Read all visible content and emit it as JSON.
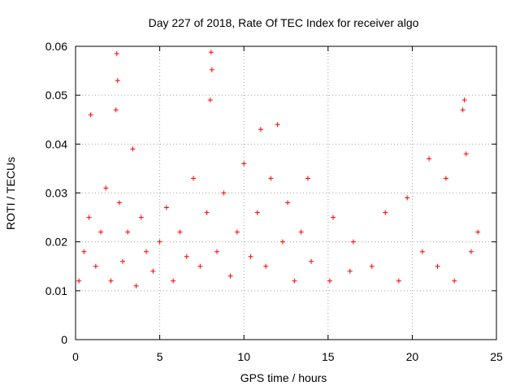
{
  "chart_data": {
    "type": "scatter",
    "title": "Day 227 of 2018, Rate Of TEC Index for receiver algo",
    "xlabel": "GPS time / hours",
    "ylabel": "ROTI / TECUs",
    "xlim": [
      0,
      25
    ],
    "ylim": [
      0,
      0.06
    ],
    "x_ticks": [
      "0",
      "5",
      "10",
      "15",
      "20",
      "25"
    ],
    "y_ticks": [
      "0",
      "0.01",
      "0.02",
      "0.03",
      "0.04",
      "0.05",
      "0.06"
    ],
    "grid": true,
    "marker": "+",
    "color": "#ff0000",
    "series": [
      {
        "x": [
          0.2,
          0.5,
          0.8,
          0.9,
          1.2,
          1.5,
          1.8,
          2.1,
          2.4,
          2.45,
          2.5,
          2.6,
          2.8,
          3.1,
          3.4,
          3.6,
          3.9,
          4.2,
          4.6,
          5.0,
          5.4,
          5.8,
          6.2,
          6.6,
          7.0,
          7.4,
          7.8,
          8.0,
          8.05,
          8.1,
          8.4,
          8.8,
          9.2,
          9.6,
          10.0,
          10.4,
          10.8,
          11.0,
          11.3,
          11.6,
          12.0,
          12.3,
          12.6,
          13.0,
          13.4,
          13.8,
          14.0,
          15.1,
          15.3,
          16.3,
          16.5,
          17.6,
          18.4,
          19.2,
          19.7,
          20.6,
          21.0,
          21.5,
          22.0,
          22.5,
          23.0,
          23.1,
          23.2,
          23.5,
          23.9
        ],
        "y": [
          0.012,
          0.018,
          0.025,
          0.046,
          0.015,
          0.022,
          0.031,
          0.012,
          0.047,
          0.0585,
          0.053,
          0.028,
          0.016,
          0.022,
          0.039,
          0.011,
          0.025,
          0.018,
          0.014,
          0.02,
          0.027,
          0.012,
          0.022,
          0.017,
          0.033,
          0.015,
          0.026,
          0.049,
          0.0588,
          0.0552,
          0.018,
          0.03,
          0.013,
          0.022,
          0.036,
          0.017,
          0.026,
          0.043,
          0.015,
          0.033,
          0.044,
          0.02,
          0.028,
          0.012,
          0.022,
          0.033,
          0.016,
          0.012,
          0.025,
          0.014,
          0.02,
          0.015,
          0.026,
          0.012,
          0.029,
          0.018,
          0.037,
          0.015,
          0.033,
          0.012,
          0.047,
          0.049,
          0.038,
          0.018,
          0.022
        ]
      }
    ]
  }
}
